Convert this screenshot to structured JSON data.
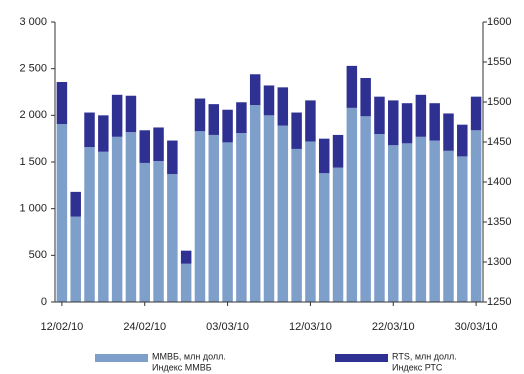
{
  "chart_data": {
    "type": "bar",
    "stacked": true,
    "categories": [
      "12/02/10",
      null,
      null,
      null,
      null,
      null,
      "24/02/10",
      null,
      null,
      null,
      null,
      null,
      "03/03/10",
      null,
      null,
      null,
      null,
      null,
      "12/03/10",
      null,
      null,
      null,
      null,
      null,
      "22/03/10",
      null,
      null,
      null,
      null,
      null,
      "30/03/10"
    ],
    "series": [
      {
        "name": "ММВБ, млн долл.",
        "color": "#7f9fcb",
        "values": [
          1907,
          915,
          1660,
          1610,
          1770,
          1820,
          1490,
          1510,
          1370,
          410,
          1830,
          1790,
          1710,
          1810,
          2110,
          2000,
          1890,
          1640,
          1720,
          1380,
          1440,
          2080,
          1990,
          1800,
          1680,
          1700,
          1770,
          1730,
          1620,
          1560,
          1840
        ]
      },
      {
        "name": "RTS, млн долл.",
        "color": "#2e3192",
        "values": [
          450,
          265,
          370,
          390,
          450,
          390,
          350,
          360,
          360,
          140,
          350,
          330,
          350,
          330,
          330,
          320,
          410,
          390,
          440,
          370,
          350,
          450,
          410,
          400,
          480,
          430,
          450,
          400,
          400,
          340,
          360
        ]
      }
    ],
    "legend_notes": [
      "Индекс ММВБ",
      "Индекс РТС"
    ],
    "ylim": [
      0,
      3000
    ],
    "yticks": [
      0,
      500,
      {
        "value": 1000,
        "label": "1 000"
      },
      {
        "value": 1500,
        "label": "1 500"
      },
      {
        "value": 2000,
        "label": "2 000"
      },
      {
        "value": 2500,
        "label": "2 500"
      },
      {
        "value": 3000,
        "label": "3 000"
      }
    ],
    "y2lim": [
      1250,
      1600
    ],
    "y2ticks": [
      1250,
      1300,
      1350,
      1400,
      1450,
      1500,
      1550,
      1600
    ]
  }
}
